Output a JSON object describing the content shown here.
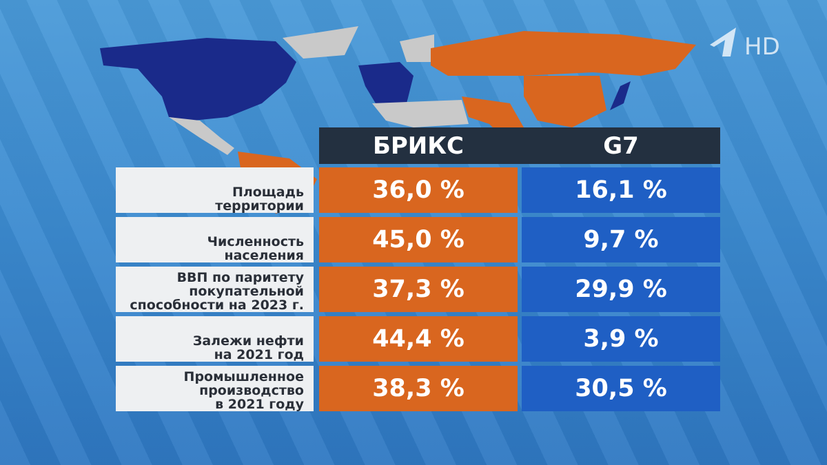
{
  "logo": {
    "text": "HD"
  },
  "table": {
    "columns": [
      "БРИКС",
      "G7"
    ],
    "rows": [
      {
        "label": [
          "Площадь",
          "территории"
        ],
        "values": [
          "36,0 %",
          "16,1 %"
        ]
      },
      {
        "label": [
          "Численность",
          "населения"
        ],
        "values": [
          "45,0 %",
          "9,7 %"
        ]
      },
      {
        "label": [
          "ВВП по паритету",
          "покупательной",
          "способности на 2023 г."
        ],
        "values": [
          "37,3 %",
          "29,9 %"
        ]
      },
      {
        "label": [
          "Залежи нефти",
          "на 2021 год"
        ],
        "values": [
          "44,4 %",
          "3,9 %"
        ]
      },
      {
        "label": [
          "Промышленное",
          "производство",
          "в 2021 году"
        ],
        "values": [
          "38,3 %",
          "30,5 %"
        ]
      }
    ]
  }
}
